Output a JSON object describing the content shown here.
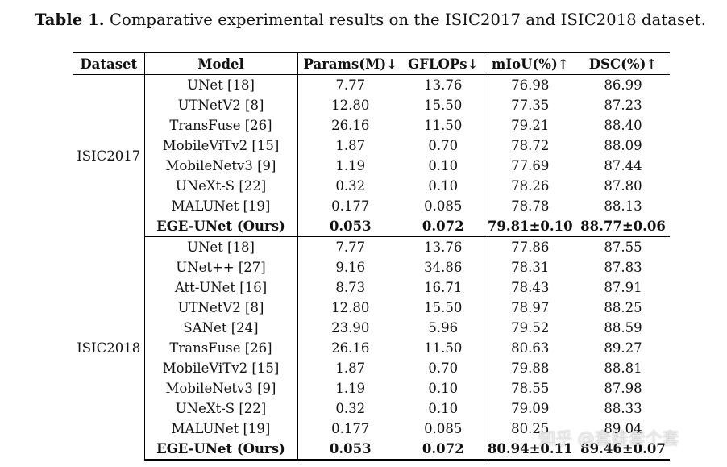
{
  "caption": {
    "label": "Table 1.",
    "text": " Comparative experimental results on the ISIC2017 and ISIC2018 dataset."
  },
  "table": {
    "headers": [
      "Dataset",
      "Model",
      "Params(M)↓",
      "GFLOPs↓",
      "mIoU(%)↑",
      "DSC(%)↑"
    ],
    "groups": [
      {
        "dataset": "ISIC2017",
        "rows": [
          [
            "UNet [18]",
            "7.77",
            "13.76",
            "76.98",
            "86.99"
          ],
          [
            "UTNetV2 [8]",
            "12.80",
            "15.50",
            "77.35",
            "87.23"
          ],
          [
            "TransFuse [26]",
            "26.16",
            "11.50",
            "79.21",
            "88.40"
          ],
          [
            "MobileViTv2 [15]",
            "1.87",
            "0.70",
            "78.72",
            "88.09"
          ],
          [
            "MobileNetv3 [9]",
            "1.19",
            "0.10",
            "77.69",
            "87.44"
          ],
          [
            "UNeXt-S [22]",
            "0.32",
            "0.10",
            "78.26",
            "87.80"
          ],
          [
            "MALUNet [19]",
            "0.177",
            "0.085",
            "78.78",
            "88.13"
          ],
          [
            "EGE-UNet (Ours)",
            "0.053",
            "0.072",
            "79.81±0.10",
            "88.77±0.06"
          ]
        ]
      },
      {
        "dataset": "ISIC2018",
        "rows": [
          [
            "UNet [18]",
            "7.77",
            "13.76",
            "77.86",
            "87.55"
          ],
          [
            "UNet++ [27]",
            "9.16",
            "34.86",
            "78.31",
            "87.83"
          ],
          [
            "Att-UNet [16]",
            "8.73",
            "16.71",
            "78.43",
            "87.91"
          ],
          [
            "UTNetV2 [8]",
            "12.80",
            "15.50",
            "78.97",
            "88.25"
          ],
          [
            "SANet [24]",
            "23.90",
            "5.96",
            "79.52",
            "88.59"
          ],
          [
            "TransFuse [26]",
            "26.16",
            "11.50",
            "80.63",
            "89.27"
          ],
          [
            "MobileViTv2 [15]",
            "1.87",
            "0.70",
            "79.88",
            "88.81"
          ],
          [
            "MobileNetv3 [9]",
            "1.19",
            "0.10",
            "78.55",
            "87.98"
          ],
          [
            "UNeXt-S [22]",
            "0.32",
            "0.10",
            "79.09",
            "88.33"
          ],
          [
            "MALUNet [19]",
            "0.177",
            "0.085",
            "80.25",
            "89.04"
          ],
          [
            "EGE-UNet (Ours)",
            "0.053",
            "0.072",
            "80.94±0.11",
            "89.46±0.07"
          ]
        ]
      }
    ]
  },
  "watermark": "知乎 @套娃套个套"
}
